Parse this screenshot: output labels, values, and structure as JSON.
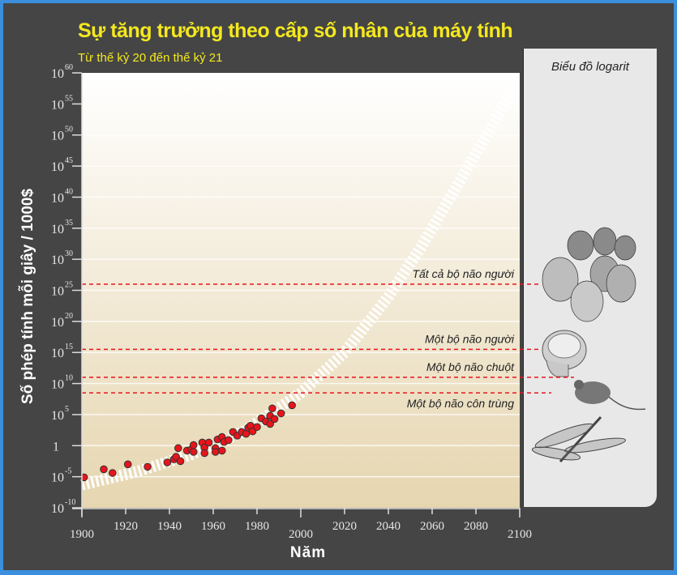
{
  "chart_data": {
    "type": "scatter",
    "title": "Sự tăng trưởng theo cấp số nhân của máy tính",
    "subtitle": "Từ thế kỷ 20 đến thế kỷ 21",
    "xlabel": "Năm",
    "ylabel": "Số phép tính mỗi giây / 1000$",
    "xlim": [
      1900,
      2100
    ],
    "ylim_log10": [
      -10,
      60
    ],
    "y_scale": "log",
    "grid": true,
    "x_ticks": [
      "1900",
      "1920",
      "1940",
      "1960",
      "1980",
      "2000",
      "2020",
      "2040",
      "2060",
      "2080",
      "2100"
    ],
    "y_ticks": [
      {
        "base": "10",
        "exp": "60"
      },
      {
        "base": "10",
        "exp": "55"
      },
      {
        "base": "10",
        "exp": "50"
      },
      {
        "base": "10",
        "exp": "45"
      },
      {
        "base": "10",
        "exp": "40"
      },
      {
        "base": "10",
        "exp": "35"
      },
      {
        "base": "10",
        "exp": "30"
      },
      {
        "base": "10",
        "exp": "25"
      },
      {
        "base": "10",
        "exp": "20"
      },
      {
        "base": "10",
        "exp": "15"
      },
      {
        "base": "10",
        "exp": "10"
      },
      {
        "base": "10",
        "exp": "5"
      },
      {
        "base": "1",
        "exp": ""
      },
      {
        "base": "10",
        "exp": "-5"
      },
      {
        "base": "10",
        "exp": "-10"
      }
    ],
    "points_log10": [
      [
        1901,
        -5.1
      ],
      [
        1910,
        -3.8
      ],
      [
        1914,
        -4.4
      ],
      [
        1921,
        -3.0
      ],
      [
        1930,
        -3.4
      ],
      [
        1939,
        -2.7
      ],
      [
        1942,
        -2.2
      ],
      [
        1943,
        -1.8
      ],
      [
        1945,
        -2.5
      ],
      [
        1944,
        -0.4
      ],
      [
        1948,
        -0.8
      ],
      [
        1950,
        -0.6
      ],
      [
        1951,
        -1.0
      ],
      [
        1951,
        0.1
      ],
      [
        1955,
        0.5
      ],
      [
        1956,
        -0.3
      ],
      [
        1956,
        -1.2
      ],
      [
        1958,
        0.5
      ],
      [
        1961,
        -0.4
      ],
      [
        1961,
        -1.0
      ],
      [
        1964,
        -0.8
      ],
      [
        1962,
        1.0
      ],
      [
        1964,
        1.4
      ],
      [
        1965,
        0.6
      ],
      [
        1967,
        0.9
      ],
      [
        1969,
        2.2
      ],
      [
        1971,
        1.6
      ],
      [
        1973,
        2.2
      ],
      [
        1975,
        1.9
      ],
      [
        1976,
        2.9
      ],
      [
        1977,
        3.2
      ],
      [
        1978,
        2.3
      ],
      [
        1980,
        3.0
      ],
      [
        1982,
        4.4
      ],
      [
        1984,
        3.9
      ],
      [
        1986,
        3.5
      ],
      [
        1986,
        4.8
      ],
      [
        1987,
        6.0
      ],
      [
        1988,
        4.3
      ],
      [
        1991,
        5.2
      ],
      [
        1996,
        6.5
      ]
    ],
    "trend_log10": [
      [
        1900,
        -6.3
      ],
      [
        1925,
        -4.2
      ],
      [
        1950,
        -1.4
      ],
      [
        1975,
        2.5
      ],
      [
        2000,
        8.5
      ],
      [
        2020,
        15
      ],
      [
        2040,
        24
      ],
      [
        2055,
        32
      ],
      [
        2070,
        41
      ],
      [
        2085,
        50
      ],
      [
        2096,
        57
      ]
    ],
    "reference_lines": [
      {
        "label": "Tất cả bộ não người",
        "log10": 26
      },
      {
        "label": "Một bộ não người",
        "log10": 15.5
      },
      {
        "label": "Một bộ não chuột",
        "log10": 11
      },
      {
        "label": "Một bộ não côn trùng",
        "log10": 8.5
      }
    ],
    "colors": {
      "point": "#e8141c",
      "reference_line": "#e8141c",
      "trend": "#ffffff",
      "plot_top": "#ffffff",
      "plot_bottom": "#e6d6b0",
      "title": "#f4e81e",
      "background": "#454545",
      "border": "#3b8fdc"
    }
  },
  "panel": {
    "title": "Biểu đồ logarit",
    "icons": [
      "human-heads-icon",
      "human-brain-icon",
      "mouse-icon",
      "dragonfly-icon"
    ]
  }
}
